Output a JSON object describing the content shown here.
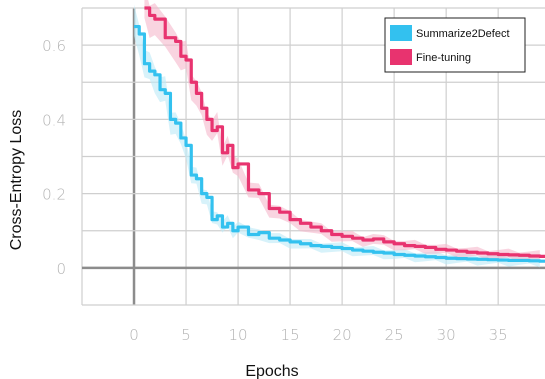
{
  "chart_data": {
    "type": "line",
    "xlabel": "Epochs",
    "ylabel": "Cross-Entropy Loss",
    "xlim": [
      -5,
      39.5
    ],
    "ylim": [
      -0.1,
      0.7
    ],
    "x_ticks": [
      0,
      5,
      10,
      15,
      20,
      25,
      30,
      35
    ],
    "y_ticks": [
      0,
      0.2,
      0.4,
      0.6
    ],
    "grid": true,
    "legend_position": "top-right",
    "series": [
      {
        "name": "Summarize2Defect",
        "color": "#33c1ef",
        "band_color": "#bde9f7",
        "x": [
          0,
          0.5,
          1,
          1.5,
          2,
          2.5,
          3,
          3.5,
          4,
          4.5,
          5,
          5.5,
          6,
          6.5,
          7,
          7.5,
          8,
          8.5,
          9,
          9.5,
          10,
          11,
          12,
          13,
          14,
          15,
          16,
          17,
          18,
          19,
          20,
          21,
          22,
          23,
          24,
          25,
          26,
          27,
          28,
          29,
          30,
          31,
          32,
          33,
          34,
          35,
          36,
          37,
          38,
          39
        ],
        "values": [
          0.65,
          0.63,
          0.55,
          0.53,
          0.52,
          0.48,
          0.47,
          0.4,
          0.39,
          0.35,
          0.33,
          0.25,
          0.24,
          0.2,
          0.19,
          0.13,
          0.14,
          0.11,
          0.12,
          0.1,
          0.11,
          0.09,
          0.095,
          0.08,
          0.075,
          0.07,
          0.065,
          0.06,
          0.058,
          0.055,
          0.052,
          0.048,
          0.045,
          0.042,
          0.04,
          0.036,
          0.034,
          0.032,
          0.03,
          0.028,
          0.026,
          0.025,
          0.024,
          0.023,
          0.022,
          0.021,
          0.02,
          0.02,
          0.019,
          0.018
        ]
      },
      {
        "name": "Fine-tuning",
        "color": "#e8336f",
        "band_color": "#f5b8cb",
        "x": [
          1,
          1.5,
          2,
          3,
          4,
          4.5,
          5,
          5.5,
          6,
          6.5,
          7,
          7.5,
          8,
          8.5,
          9,
          9.5,
          10,
          11,
          12,
          13,
          14,
          15,
          16,
          17,
          18,
          19,
          20,
          21,
          22,
          23,
          24,
          25,
          26,
          27,
          28,
          29,
          30,
          31,
          32,
          33,
          34,
          35,
          36,
          37,
          38,
          39
        ],
        "values": [
          0.7,
          0.68,
          0.67,
          0.62,
          0.61,
          0.57,
          0.56,
          0.5,
          0.47,
          0.43,
          0.4,
          0.37,
          0.38,
          0.31,
          0.33,
          0.27,
          0.28,
          0.21,
          0.2,
          0.16,
          0.15,
          0.13,
          0.12,
          0.11,
          0.1,
          0.09,
          0.085,
          0.08,
          0.075,
          0.078,
          0.07,
          0.065,
          0.06,
          0.058,
          0.055,
          0.05,
          0.048,
          0.045,
          0.042,
          0.04,
          0.038,
          0.036,
          0.035,
          0.034,
          0.032,
          0.031
        ]
      }
    ]
  }
}
